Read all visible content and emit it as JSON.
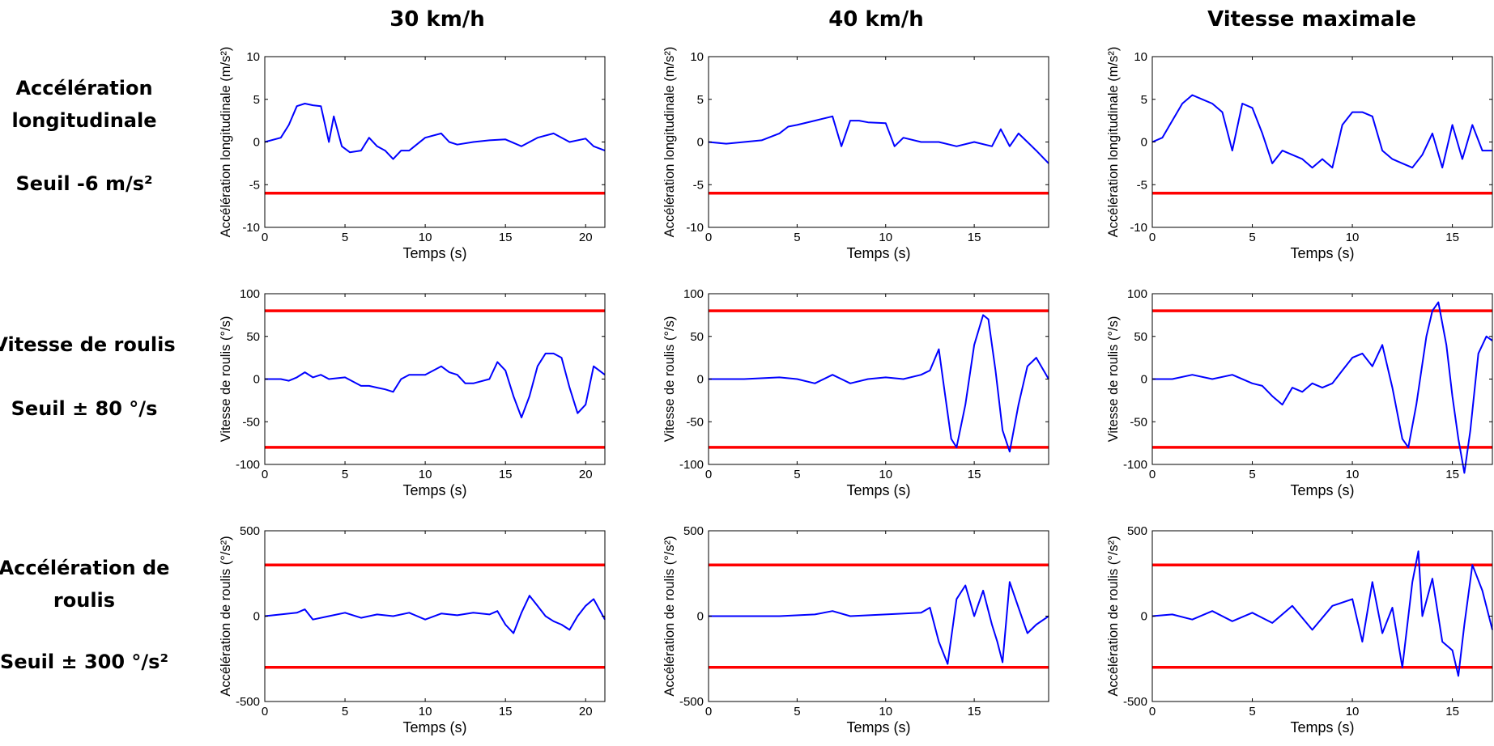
{
  "col_titles": [
    "30 km/h",
    "40 km/h",
    "Vitesse maximale"
  ],
  "rows": [
    {
      "title_lines": [
        "Accélération",
        "longitudinale"
      ],
      "threshold_text": "Seuil -6 m/s²"
    },
    {
      "title_lines": [
        "Vitesse de roulis"
      ],
      "threshold_text": "Seuil ± 80 °/s"
    },
    {
      "title_lines": [
        "Accélération de",
        "roulis"
      ],
      "threshold_text": "Seuil ± 300 °/s²"
    }
  ],
  "colors": {
    "signal": "#0000ff",
    "threshold": "#ff0000",
    "axes": "#000000"
  },
  "chart_data": [
    {
      "type": "line",
      "row": 0,
      "col": 0,
      "xlabel": "Temps (s)",
      "ylabel": "Accélération longitudinale (m/s²)",
      "xlim": [
        0,
        21.2
      ],
      "ylim": [
        -10,
        10
      ],
      "xticks": [
        0,
        5,
        10,
        15,
        20
      ],
      "yticks": [
        -10,
        -5,
        0,
        5,
        10
      ],
      "thresholds": [
        -6
      ],
      "x": [
        0,
        1,
        1.5,
        2,
        2.5,
        3,
        3.5,
        4,
        4.3,
        4.8,
        5.3,
        6,
        6.5,
        7,
        7.5,
        8,
        8.5,
        9,
        10,
        11,
        11.5,
        12,
        13,
        14,
        15,
        16,
        17,
        18,
        19,
        20,
        20.5,
        21.2
      ],
      "y": [
        0,
        0.5,
        2,
        4.2,
        4.5,
        4.3,
        4.2,
        0,
        3,
        -0.5,
        -1.2,
        -1,
        0.5,
        -0.5,
        -1,
        -2,
        -1,
        -1,
        0.5,
        1,
        0,
        -0.3,
        0,
        0.2,
        0.3,
        -0.5,
        0.5,
        1,
        0,
        0.4,
        -0.5,
        -1
      ]
    },
    {
      "type": "line",
      "row": 0,
      "col": 1,
      "xlabel": "Temps (s)",
      "ylabel": "Accélération longitudinale (m/s²)",
      "xlim": [
        0,
        19.2
      ],
      "ylim": [
        -10,
        10
      ],
      "xticks": [
        0,
        5,
        10,
        15
      ],
      "yticks": [
        -10,
        -5,
        0,
        5,
        10
      ],
      "thresholds": [
        -6
      ],
      "x": [
        0,
        1,
        2,
        3,
        4,
        4.5,
        5,
        6,
        7,
        7.5,
        8,
        8.5,
        9,
        10,
        10.5,
        11,
        12,
        13,
        14,
        15,
        16,
        16.5,
        17,
        17.5,
        18,
        18.5,
        19.2
      ],
      "y": [
        0,
        -0.2,
        0,
        0.2,
        1,
        1.8,
        2,
        2.5,
        3,
        -0.5,
        2.5,
        2.5,
        2.3,
        2.2,
        -0.5,
        0.5,
        0,
        0,
        -0.5,
        0,
        -0.5,
        1.5,
        -0.5,
        1,
        0,
        -1,
        -2.5
      ]
    },
    {
      "type": "line",
      "row": 0,
      "col": 2,
      "xlabel": "Temps (s)",
      "ylabel": "Accélération longitudinale (m/s²)",
      "xlim": [
        0,
        17
      ],
      "ylim": [
        -10,
        10
      ],
      "xticks": [
        0,
        5,
        10,
        15
      ],
      "yticks": [
        -10,
        -5,
        0,
        5,
        10
      ],
      "thresholds": [
        -6
      ],
      "x": [
        0,
        0.5,
        1,
        1.5,
        2,
        2.5,
        3,
        3.5,
        4,
        4.5,
        5,
        5.5,
        6,
        6.5,
        7,
        7.5,
        8,
        8.5,
        9,
        9.5,
        10,
        10.5,
        11,
        11.5,
        12,
        12.5,
        13,
        13.5,
        14,
        14.5,
        15,
        15.5,
        16,
        16.5,
        17
      ],
      "y": [
        0,
        0.5,
        2.5,
        4.5,
        5.5,
        5,
        4.5,
        3.5,
        -1,
        4.5,
        4,
        1,
        -2.5,
        -1,
        -1.5,
        -2,
        -3,
        -2,
        -3,
        2,
        3.5,
        3.5,
        3,
        -1,
        -2,
        -2.5,
        -3,
        -1.5,
        1,
        -3,
        2,
        -2,
        2,
        -1,
        -1
      ]
    },
    {
      "type": "line",
      "row": 1,
      "col": 0,
      "xlabel": "Temps (s)",
      "ylabel": "Vitesse de roulis (°/s)",
      "xlim": [
        0,
        21.2
      ],
      "ylim": [
        -100,
        100
      ],
      "xticks": [
        0,
        5,
        10,
        15,
        20
      ],
      "yticks": [
        -100,
        -50,
        0,
        50,
        100
      ],
      "thresholds": [
        80,
        -80
      ],
      "x": [
        0,
        1,
        1.5,
        2,
        2.5,
        3,
        3.5,
        4,
        5,
        6,
        6.5,
        7,
        7.5,
        8,
        8.5,
        9,
        10,
        11,
        11.5,
        12,
        12.5,
        13,
        14,
        14.5,
        15,
        15.5,
        16,
        16.5,
        17,
        17.5,
        18,
        18.5,
        19,
        19.5,
        20,
        20.5,
        21.2
      ],
      "y": [
        0,
        0,
        -2,
        2,
        8,
        2,
        5,
        0,
        2,
        -8,
        -8,
        -10,
        -12,
        -15,
        0,
        5,
        5,
        15,
        8,
        5,
        -5,
        -5,
        0,
        20,
        10,
        -20,
        -45,
        -20,
        15,
        30,
        30,
        25,
        -10,
        -40,
        -30,
        15,
        5
      ]
    },
    {
      "type": "line",
      "row": 1,
      "col": 1,
      "xlabel": "Temps (s)",
      "ylabel": "Vitesse de roulis (°/s)",
      "xlim": [
        0,
        19.2
      ],
      "ylim": [
        -100,
        100
      ],
      "xticks": [
        0,
        5,
        10,
        15
      ],
      "yticks": [
        -100,
        -50,
        0,
        50,
        100
      ],
      "thresholds": [
        80,
        -80
      ],
      "x": [
        0,
        2,
        4,
        5,
        6,
        7,
        7.5,
        8,
        9,
        10,
        11,
        12,
        12.5,
        13,
        13.3,
        13.7,
        14,
        14.5,
        15,
        15.5,
        15.8,
        16.2,
        16.6,
        17,
        17.5,
        18,
        18.5,
        19.2
      ],
      "y": [
        0,
        0,
        2,
        0,
        -5,
        5,
        0,
        -5,
        0,
        2,
        0,
        5,
        10,
        35,
        -10,
        -70,
        -80,
        -30,
        40,
        75,
        70,
        10,
        -60,
        -85,
        -30,
        15,
        25,
        0
      ]
    },
    {
      "type": "line",
      "row": 1,
      "col": 2,
      "xlabel": "Temps (s)",
      "ylabel": "Vitesse de roulis (°/s)",
      "xlim": [
        0,
        17
      ],
      "ylim": [
        -100,
        100
      ],
      "xticks": [
        0,
        5,
        10,
        15
      ],
      "yticks": [
        -100,
        -50,
        0,
        50,
        100
      ],
      "thresholds": [
        80,
        -80
      ],
      "x": [
        0,
        1,
        2,
        3,
        4,
        5,
        5.5,
        6,
        6.5,
        7,
        7.5,
        8,
        8.5,
        9,
        9.5,
        10,
        10.5,
        11,
        11.5,
        12,
        12.5,
        12.8,
        13.2,
        13.7,
        14,
        14.3,
        14.7,
        15,
        15.3,
        15.6,
        15.9,
        16.3,
        16.7,
        17
      ],
      "y": [
        0,
        0,
        5,
        0,
        5,
        -5,
        -8,
        -20,
        -30,
        -10,
        -15,
        -5,
        -10,
        -5,
        10,
        25,
        30,
        15,
        40,
        -10,
        -70,
        -80,
        -30,
        50,
        80,
        90,
        40,
        -20,
        -70,
        -110,
        -60,
        30,
        50,
        45
      ]
    },
    {
      "type": "line",
      "row": 2,
      "col": 0,
      "xlabel": "Temps (s)",
      "ylabel": "Accélération de roulis (°/s²)",
      "xlim": [
        0,
        21.2
      ],
      "ylim": [
        -500,
        500
      ],
      "xticks": [
        0,
        5,
        10,
        15,
        20
      ],
      "yticks": [
        -500,
        0,
        500
      ],
      "thresholds": [
        300,
        -300
      ],
      "x": [
        0,
        1,
        2,
        2.5,
        3,
        4,
        5,
        6,
        7,
        8,
        9,
        10,
        11,
        12,
        13,
        14,
        14.5,
        15,
        15.5,
        16,
        16.5,
        17,
        17.5,
        18,
        18.5,
        19,
        19.5,
        20,
        20.5,
        21.2
      ],
      "y": [
        0,
        10,
        20,
        40,
        -20,
        0,
        20,
        -10,
        10,
        0,
        20,
        -20,
        15,
        5,
        20,
        10,
        30,
        -50,
        -100,
        20,
        120,
        60,
        0,
        -30,
        -50,
        -80,
        0,
        60,
        100,
        -20
      ]
    },
    {
      "type": "line",
      "row": 2,
      "col": 1,
      "xlabel": "Temps (s)",
      "ylabel": "Accélération de roulis (°/s²)",
      "xlim": [
        0,
        19.2
      ],
      "ylim": [
        -500,
        500
      ],
      "xticks": [
        0,
        5,
        10,
        15
      ],
      "yticks": [
        -500,
        0,
        500
      ],
      "thresholds": [
        300,
        -300
      ],
      "x": [
        0,
        2,
        4,
        6,
        7,
        8,
        10,
        12,
        12.5,
        13,
        13.5,
        14,
        14.5,
        15,
        15.5,
        16,
        16.3,
        16.6,
        17,
        17.5,
        18,
        18.5,
        19.2
      ],
      "y": [
        0,
        0,
        0,
        10,
        30,
        0,
        10,
        20,
        50,
        -150,
        -280,
        100,
        180,
        0,
        150,
        -50,
        -150,
        -270,
        200,
        50,
        -100,
        -50,
        0
      ]
    },
    {
      "type": "line",
      "row": 2,
      "col": 2,
      "xlabel": "Temps (s)",
      "ylabel": "Accélération de roulis (°/s²)",
      "xlim": [
        0,
        17
      ],
      "ylim": [
        -500,
        500
      ],
      "xticks": [
        0,
        5,
        10,
        15
      ],
      "yticks": [
        -500,
        0,
        500
      ],
      "thresholds": [
        300,
        -300
      ],
      "x": [
        0,
        1,
        2,
        3,
        4,
        5,
        6,
        7,
        8,
        9,
        10,
        10.5,
        11,
        11.5,
        12,
        12.5,
        13,
        13.3,
        13.5,
        14,
        14.5,
        15,
        15.3,
        15.6,
        16,
        16.5,
        17
      ],
      "y": [
        0,
        10,
        -20,
        30,
        -30,
        20,
        -40,
        60,
        -80,
        60,
        100,
        -150,
        200,
        -100,
        50,
        -300,
        200,
        380,
        0,
        220,
        -150,
        -200,
        -350,
        -50,
        300,
        150,
        -80
      ]
    }
  ]
}
